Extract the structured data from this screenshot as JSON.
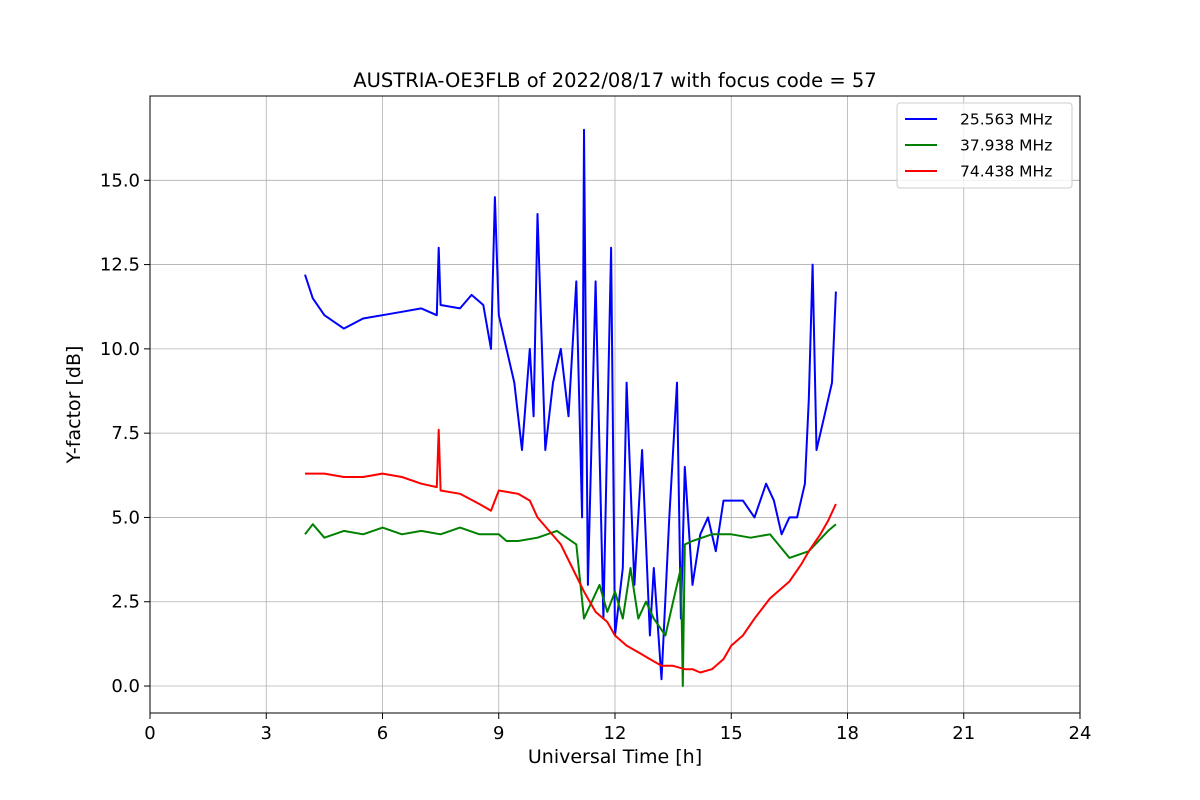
{
  "chart_data": {
    "type": "line",
    "title": "AUSTRIA-OE3FLB of 2022/08/17 with focus code = 57",
    "xlabel": "Universal Time [h]",
    "ylabel": "Y-factor [dB]",
    "xlim": [
      0,
      24
    ],
    "ylim": [
      -0.8,
      17.5
    ],
    "x_ticks": [
      0,
      3,
      6,
      9,
      12,
      15,
      18,
      21,
      24
    ],
    "x_tick_labels": [
      "0",
      "3",
      "6",
      "9",
      "12",
      "15",
      "18",
      "21",
      "24"
    ],
    "y_ticks": [
      0.0,
      2.5,
      5.0,
      7.5,
      10.0,
      12.5,
      15.0
    ],
    "y_tick_labels": [
      "0.0",
      "2.5",
      "5.0",
      "7.5",
      "10.0",
      "12.5",
      "15.0"
    ],
    "grid": true,
    "legend_position": "top-right",
    "series": [
      {
        "name": "25.563 MHz",
        "color": "#0000ff",
        "x": [
          4.0,
          4.2,
          4.5,
          5.0,
          5.5,
          6.0,
          6.5,
          7.0,
          7.4,
          7.45,
          7.5,
          8.0,
          8.3,
          8.6,
          8.8,
          8.9,
          9.0,
          9.2,
          9.4,
          9.6,
          9.8,
          9.9,
          10.0,
          10.2,
          10.4,
          10.6,
          10.8,
          11.0,
          11.15,
          11.2,
          11.3,
          11.5,
          11.7,
          11.9,
          12.0,
          12.2,
          12.3,
          12.5,
          12.7,
          12.9,
          13.0,
          13.2,
          13.4,
          13.6,
          13.7,
          13.8,
          14.0,
          14.2,
          14.4,
          14.6,
          14.8,
          15.0,
          15.3,
          15.6,
          15.9,
          16.1,
          16.3,
          16.5,
          16.7,
          16.9,
          17.0,
          17.1,
          17.2,
          17.4,
          17.6,
          17.7
        ],
        "y": [
          12.2,
          11.5,
          11.0,
          10.6,
          10.9,
          11.0,
          11.1,
          11.2,
          11.0,
          13.0,
          11.3,
          11.2,
          11.6,
          11.3,
          10.0,
          14.5,
          11.0,
          10.0,
          9.0,
          7.0,
          10.0,
          8.0,
          14.0,
          7.0,
          9.0,
          10.0,
          8.0,
          12.0,
          5.0,
          16.5,
          3.0,
          12.0,
          2.0,
          13.0,
          1.5,
          3.5,
          9.0,
          3.0,
          7.0,
          1.5,
          3.5,
          0.2,
          5.0,
          9.0,
          2.0,
          6.5,
          3.0,
          4.5,
          5.0,
          4.0,
          5.5,
          5.5,
          5.5,
          5.0,
          6.0,
          5.5,
          4.5,
          5.0,
          5.0,
          6.0,
          8.5,
          12.5,
          7.0,
          8.0,
          9.0,
          11.7
        ]
      },
      {
        "name": "37.938 MHz",
        "color": "#008000",
        "x": [
          4.0,
          4.2,
          4.5,
          5.0,
          5.5,
          6.0,
          6.5,
          7.0,
          7.5,
          8.0,
          8.5,
          9.0,
          9.2,
          9.5,
          10.0,
          10.5,
          11.0,
          11.2,
          11.4,
          11.6,
          11.8,
          12.0,
          12.2,
          12.4,
          12.6,
          12.8,
          13.0,
          13.3,
          13.5,
          13.7,
          13.75,
          13.8,
          14.0,
          14.5,
          15.0,
          15.5,
          16.0,
          16.5,
          17.0,
          17.5,
          17.7
        ],
        "y": [
          4.5,
          4.8,
          4.4,
          4.6,
          4.5,
          4.7,
          4.5,
          4.6,
          4.5,
          4.7,
          4.5,
          4.5,
          4.3,
          4.3,
          4.4,
          4.6,
          4.2,
          2.0,
          2.5,
          3.0,
          2.2,
          2.8,
          2.0,
          3.5,
          2.0,
          2.5,
          2.0,
          1.5,
          2.5,
          3.5,
          0.0,
          4.2,
          4.3,
          4.5,
          4.5,
          4.4,
          4.5,
          3.8,
          4.0,
          4.6,
          4.8
        ]
      },
      {
        "name": "74.438 MHz",
        "color": "#ff0000",
        "x": [
          4.0,
          4.5,
          5.0,
          5.5,
          6.0,
          6.5,
          7.0,
          7.4,
          7.45,
          7.5,
          8.0,
          8.5,
          8.8,
          9.0,
          9.5,
          9.8,
          10.0,
          10.3,
          10.6,
          10.9,
          11.2,
          11.5,
          11.8,
          12.0,
          12.3,
          12.6,
          12.9,
          13.2,
          13.5,
          13.8,
          14.0,
          14.2,
          14.5,
          14.8,
          15.0,
          15.3,
          15.6,
          16.0,
          16.5,
          16.8,
          17.0,
          17.3,
          17.5,
          17.7
        ],
        "y": [
          6.3,
          6.3,
          6.2,
          6.2,
          6.3,
          6.2,
          6.0,
          5.9,
          7.6,
          5.8,
          5.7,
          5.4,
          5.2,
          5.8,
          5.7,
          5.5,
          5.0,
          4.6,
          4.2,
          3.5,
          2.8,
          2.2,
          1.9,
          1.5,
          1.2,
          1.0,
          0.8,
          0.6,
          0.6,
          0.5,
          0.5,
          0.4,
          0.5,
          0.8,
          1.2,
          1.5,
          2.0,
          2.6,
          3.1,
          3.6,
          4.0,
          4.5,
          4.9,
          5.4
        ]
      }
    ]
  }
}
